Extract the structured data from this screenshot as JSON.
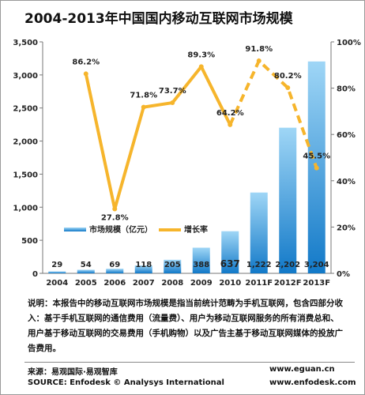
{
  "chart_data": {
    "type": "bar",
    "title": "2004-2013年中国国内移动互联网市场规模",
    "categories": [
      "2004",
      "2005",
      "2006",
      "2007",
      "2008",
      "2009",
      "2010",
      "2011F",
      "2012F",
      "2013F"
    ],
    "series": [
      {
        "name": "市场规模（亿元）",
        "type": "bar",
        "axis": "left",
        "values": [
          29,
          54,
          69,
          118,
          205,
          388,
          637,
          1222,
          2202,
          3204
        ],
        "labels": [
          "29",
          "54",
          "69",
          "118",
          "205",
          "388",
          "637",
          "1,222",
          "2,202",
          "3,204"
        ]
      },
      {
        "name": "增长率",
        "type": "line",
        "axis": "right",
        "values": [
          null,
          86.2,
          27.8,
          71.8,
          73.7,
          89.3,
          64.2,
          91.8,
          80.2,
          45.5
        ],
        "labels": [
          null,
          "86.2%",
          "27.8%",
          "71.8%",
          "73.7%",
          "89.3%",
          "64.2%",
          "91.8%",
          "80.2%",
          "45.5%"
        ],
        "forecast_from_index": 6
      }
    ],
    "y_left": {
      "range": [
        0,
        3500
      ],
      "ticks": [
        "0",
        "500",
        "1,000",
        "1,500",
        "2,000",
        "2,500",
        "3,000",
        "3,500"
      ]
    },
    "y_right": {
      "range": [
        0,
        100
      ],
      "ticks": [
        "0%",
        "20%",
        "40%",
        "60%",
        "80%",
        "100%"
      ]
    },
    "legend_position": "middle-left",
    "grid": false,
    "colors": {
      "bar_top": "#9fd6f6",
      "bar_bottom": "#1279c8",
      "line": "#f6b52c",
      "marker": "#f6b52c"
    }
  },
  "note": "说明：本报告中的移动互联网市场规模是指当前统计范畴为手机互联网，包含四部分收入：基于手机互联网的通信费用（流量费）、用户为移动互联网服务的所有消费总和、用户基于移动互联网的交易费用（手机购物）以及广告主基于移动互联网媒体的投放广告费用。",
  "footer": {
    "source_cn": "来源：易观国际·易观智库",
    "source_en": "SOURCE: Enfodesk © Analysys International",
    "site1": "www.eguan.cn",
    "site2": "www.enfodesk.com"
  }
}
